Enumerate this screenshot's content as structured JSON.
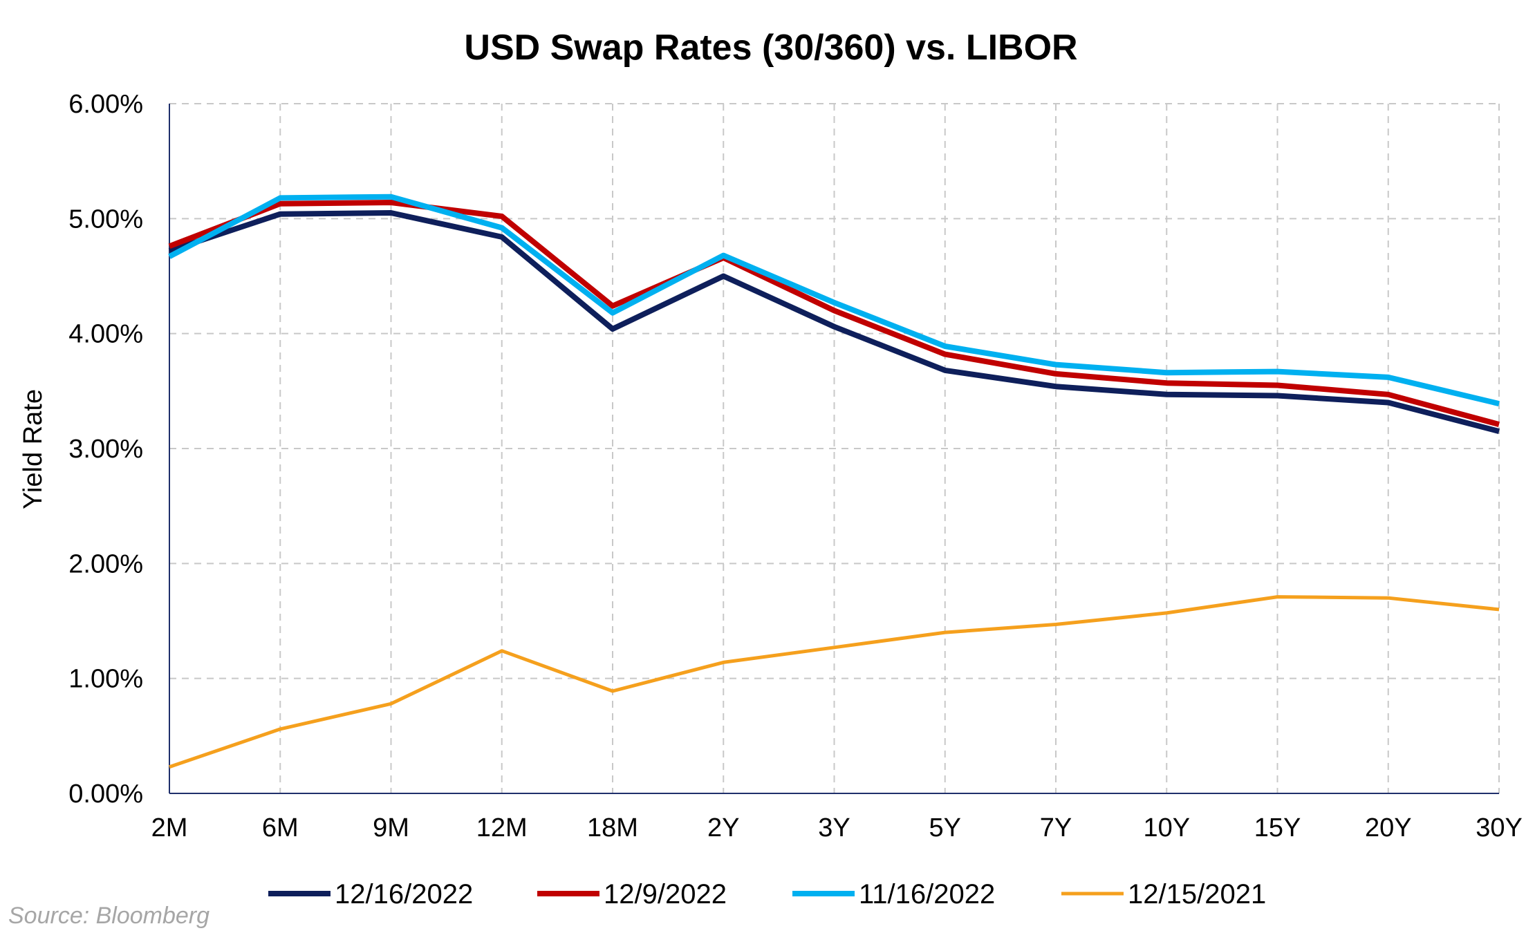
{
  "chart_data": {
    "type": "line",
    "title": "USD Swap Rates (30/360) vs. LIBOR",
    "ylabel": "Yield Rate",
    "xlabel": "",
    "ylim": [
      0,
      6
    ],
    "yticks": [
      0,
      1,
      2,
      3,
      4,
      5,
      6
    ],
    "ytick_labels": [
      "0.00%",
      "1.00%",
      "2.00%",
      "3.00%",
      "4.00%",
      "5.00%",
      "6.00%"
    ],
    "categories": [
      "2M",
      "6M",
      "9M",
      "12M",
      "18M",
      "2Y",
      "3Y",
      "5Y",
      "7Y",
      "10Y",
      "15Y",
      "20Y",
      "30Y"
    ],
    "grid": true,
    "legend_position": "bottom",
    "source": "Source: Bloomberg",
    "series": [
      {
        "name": "12/16/2022",
        "color": "#0e1f5b",
        "values": [
          4.72,
          5.04,
          5.05,
          4.84,
          4.04,
          4.5,
          4.06,
          3.68,
          3.54,
          3.47,
          3.46,
          3.4,
          3.15
        ]
      },
      {
        "name": "12/9/2022",
        "color": "#c00000",
        "values": [
          4.76,
          5.13,
          5.14,
          5.02,
          4.24,
          4.66,
          4.2,
          3.82,
          3.65,
          3.57,
          3.55,
          3.47,
          3.21
        ]
      },
      {
        "name": "11/16/2022",
        "color": "#00b0f0",
        "values": [
          4.67,
          5.18,
          5.19,
          4.92,
          4.18,
          4.68,
          4.27,
          3.89,
          3.73,
          3.66,
          3.67,
          3.62,
          3.39
        ]
      },
      {
        "name": "12/15/2021",
        "color": "#f5a01d",
        "values": [
          0.23,
          0.56,
          0.78,
          1.24,
          0.89,
          1.14,
          1.27,
          1.4,
          1.47,
          1.57,
          1.71,
          1.7,
          1.6
        ]
      }
    ]
  }
}
